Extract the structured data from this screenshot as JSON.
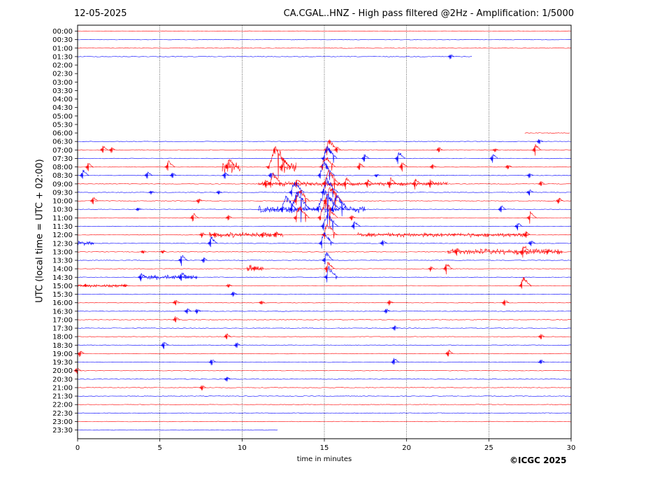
{
  "header": {
    "date": "12-05-2025",
    "station_title": "CA.CGAL..HNZ - High pass filtered @2Hz - Amplification: 1/5000"
  },
  "footer": {
    "copyright": "©ICGC 2025"
  },
  "chart_data": {
    "type": "line",
    "title": "CA.CGAL..HNZ - High pass filtered @2Hz - Amplification: 1/5000",
    "subtitle": "12-05-2025",
    "xlabel": "time in minutes",
    "ylabel": "UTC (local time = UTC + 02:00)",
    "xlim": [
      0,
      30
    ],
    "xticks": [
      0,
      5,
      10,
      15,
      20,
      25,
      30
    ],
    "grid": "vertical dotted at 5-minute ticks",
    "colors": [
      "#ff0000",
      "#0000ff"
    ],
    "rows": [
      "00:00",
      "00:30",
      "01:00",
      "01:30",
      "02:00",
      "02:30",
      "03:00",
      "03:30",
      "04:00",
      "04:30",
      "05:00",
      "05:30",
      "06:00",
      "06:30",
      "07:00",
      "07:30",
      "08:00",
      "08:30",
      "09:00",
      "09:30",
      "10:00",
      "10:30",
      "11:00",
      "11:30",
      "12:00",
      "12:30",
      "13:00",
      "13:30",
      "14:00",
      "14:30",
      "15:00",
      "15:30",
      "16:00",
      "16:30",
      "17:00",
      "17:30",
      "18:00",
      "18:30",
      "19:00",
      "19:30",
      "20:00",
      "20:30",
      "21:00",
      "21:30",
      "22:00",
      "22:30",
      "23:00",
      "23:30"
    ],
    "trace_extent": [
      [
        0,
        30
      ],
      [
        0,
        30
      ],
      [
        0,
        30
      ],
      [
        0,
        24
      ],
      [
        0,
        0
      ],
      [
        0,
        0
      ],
      [
        0,
        0
      ],
      [
        0,
        0
      ],
      [
        0,
        0
      ],
      [
        0,
        0
      ],
      [
        0,
        0
      ],
      [
        0,
        0
      ],
      [
        27.2,
        30
      ],
      [
        0,
        30
      ],
      [
        0,
        30
      ],
      [
        0,
        30
      ],
      [
        0,
        30
      ],
      [
        0,
        30
      ],
      [
        0,
        30
      ],
      [
        0,
        30
      ],
      [
        0,
        30
      ],
      [
        0,
        30
      ],
      [
        0,
        30
      ],
      [
        0,
        30
      ],
      [
        0,
        30
      ],
      [
        0,
        30
      ],
      [
        0,
        30
      ],
      [
        0,
        30
      ],
      [
        0,
        30
      ],
      [
        0,
        30
      ],
      [
        0,
        30
      ],
      [
        0,
        30
      ],
      [
        0,
        30
      ],
      [
        0,
        30
      ],
      [
        0,
        30
      ],
      [
        0,
        30
      ],
      [
        0,
        30
      ],
      [
        0,
        30
      ],
      [
        0,
        30
      ],
      [
        0,
        30
      ],
      [
        0,
        30
      ],
      [
        0,
        30
      ],
      [
        0,
        30
      ],
      [
        0,
        30
      ],
      [
        0,
        30
      ],
      [
        0,
        30
      ],
      [
        0,
        30
      ],
      [
        0,
        12.2
      ]
    ],
    "events": [
      {
        "row": 3,
        "t": 22.7,
        "amp": 0.4
      },
      {
        "row": 13,
        "t": 28.1,
        "amp": 0.4
      },
      {
        "row": 14,
        "t": 1.6,
        "amp": 0.6
      },
      {
        "row": 14,
        "t": 2.1,
        "amp": 0.4
      },
      {
        "row": 14,
        "t": 15.4,
        "amp": 1.5
      },
      {
        "row": 14,
        "t": 15.8,
        "amp": 0.5
      },
      {
        "row": 14,
        "t": 22.0,
        "amp": 0.4
      },
      {
        "row": 14,
        "t": 25.4,
        "amp": 0.3
      },
      {
        "row": 14,
        "t": 27.9,
        "amp": 0.8
      },
      {
        "row": 15,
        "t": 17.5,
        "amp": 0.6
      },
      {
        "row": 15,
        "t": 19.6,
        "amp": 1.0
      },
      {
        "row": 15,
        "t": 25.3,
        "amp": 0.7
      },
      {
        "row": 15,
        "t": 15.3,
        "amp": 1.8
      },
      {
        "row": 16,
        "t": 0.7,
        "amp": 0.6
      },
      {
        "row": 16,
        "t": 5.6,
        "amp": 0.9
      },
      {
        "row": 16,
        "t": 9.3,
        "amp": 1.2
      },
      {
        "row": 16,
        "t": 12.2,
        "amp": 3.0
      },
      {
        "row": 16,
        "t": 12.6,
        "amp": 1.1
      },
      {
        "row": 16,
        "t": 15.2,
        "amp": 1.8
      },
      {
        "row": 16,
        "t": 17.2,
        "amp": 0.6
      },
      {
        "row": 16,
        "t": 19.8,
        "amp": 0.7
      },
      {
        "row": 16,
        "t": 21.6,
        "amp": 0.4
      },
      {
        "row": 16,
        "t": 26.2,
        "amp": 0.4
      },
      {
        "row": 17,
        "t": 0.4,
        "amp": 0.8
      },
      {
        "row": 17,
        "t": 4.3,
        "amp": 0.6
      },
      {
        "row": 17,
        "t": 5.8,
        "amp": 0.4
      },
      {
        "row": 17,
        "t": 9.0,
        "amp": 0.5
      },
      {
        "row": 17,
        "t": 11.8,
        "amp": 0.5
      },
      {
        "row": 17,
        "t": 15.1,
        "amp": 2.0
      },
      {
        "row": 17,
        "t": 18.2,
        "amp": 0.3
      },
      {
        "row": 17,
        "t": 27.5,
        "amp": 0.4
      },
      {
        "row": 18,
        "t": 11.5,
        "amp": 0.6
      },
      {
        "row": 18,
        "t": 12.0,
        "amp": 1.6
      },
      {
        "row": 18,
        "t": 13.4,
        "amp": 0.8
      },
      {
        "row": 18,
        "t": 15.4,
        "amp": 2.0
      },
      {
        "row": 18,
        "t": 16.4,
        "amp": 0.9
      },
      {
        "row": 18,
        "t": 17.7,
        "amp": 0.7
      },
      {
        "row": 18,
        "t": 19.1,
        "amp": 0.9
      },
      {
        "row": 18,
        "t": 20.6,
        "amp": 0.8
      },
      {
        "row": 18,
        "t": 21.5,
        "amp": 0.6
      },
      {
        "row": 18,
        "t": 28.2,
        "amp": 0.4
      },
      {
        "row": 19,
        "t": 4.5,
        "amp": 0.3
      },
      {
        "row": 19,
        "t": 8.6,
        "amp": 0.3
      },
      {
        "row": 19,
        "t": 13.3,
        "amp": 1.7
      },
      {
        "row": 19,
        "t": 15.3,
        "amp": 2.0
      },
      {
        "row": 19,
        "t": 27.5,
        "amp": 0.5
      },
      {
        "row": 20,
        "t": 1.0,
        "amp": 0.6
      },
      {
        "row": 20,
        "t": 7.4,
        "amp": 0.4
      },
      {
        "row": 20,
        "t": 13.6,
        "amp": 1.8
      },
      {
        "row": 20,
        "t": 15.5,
        "amp": 2.2
      },
      {
        "row": 20,
        "t": 29.3,
        "amp": 0.5
      },
      {
        "row": 21,
        "t": 3.7,
        "amp": 0.3
      },
      {
        "row": 21,
        "t": 12.8,
        "amp": 2.0
      },
      {
        "row": 21,
        "t": 13.5,
        "amp": 2.6
      },
      {
        "row": 21,
        "t": 15.2,
        "amp": 3.0
      },
      {
        "row": 21,
        "t": 15.9,
        "amp": 2.2
      },
      {
        "row": 21,
        "t": 25.8,
        "amp": 0.6
      },
      {
        "row": 22,
        "t": 7.1,
        "amp": 0.7
      },
      {
        "row": 22,
        "t": 9.2,
        "amp": 0.4
      },
      {
        "row": 22,
        "t": 13.6,
        "amp": 1.8
      },
      {
        "row": 22,
        "t": 15.2,
        "amp": 2.4
      },
      {
        "row": 22,
        "t": 16.7,
        "amp": 0.4
      },
      {
        "row": 22,
        "t": 27.6,
        "amp": 0.9
      },
      {
        "row": 23,
        "t": 15.3,
        "amp": 2.0
      },
      {
        "row": 23,
        "t": 16.9,
        "amp": 0.8
      },
      {
        "row": 23,
        "t": 26.8,
        "amp": 0.6
      },
      {
        "row": 24,
        "t": 7.6,
        "amp": 0.4
      },
      {
        "row": 24,
        "t": 8.4,
        "amp": 0.4
      },
      {
        "row": 24,
        "t": 11.3,
        "amp": 0.5
      },
      {
        "row": 24,
        "t": 12.1,
        "amp": 0.5
      },
      {
        "row": 24,
        "t": 15.3,
        "amp": 1.7
      },
      {
        "row": 24,
        "t": 27.3,
        "amp": 0.5
      },
      {
        "row": 25,
        "t": 8.2,
        "amp": 0.9
      },
      {
        "row": 25,
        "t": 15.1,
        "amp": 1.6
      },
      {
        "row": 25,
        "t": 18.6,
        "amp": 0.5
      },
      {
        "row": 25,
        "t": 27.6,
        "amp": 0.5
      },
      {
        "row": 26,
        "t": 4.0,
        "amp": 0.3
      },
      {
        "row": 26,
        "t": 5.2,
        "amp": 0.3
      },
      {
        "row": 26,
        "t": 23.1,
        "amp": 0.6
      },
      {
        "row": 26,
        "t": 27.2,
        "amp": 1.0
      },
      {
        "row": 26,
        "t": 28.6,
        "amp": 0.4
      },
      {
        "row": 27,
        "t": 6.4,
        "amp": 0.8
      },
      {
        "row": 27,
        "t": 7.7,
        "amp": 0.4
      },
      {
        "row": 27,
        "t": 15.2,
        "amp": 1.1
      },
      {
        "row": 28,
        "t": 10.8,
        "amp": 0.4
      },
      {
        "row": 28,
        "t": 15.3,
        "amp": 1.0
      },
      {
        "row": 28,
        "t": 21.5,
        "amp": 0.4
      },
      {
        "row": 28,
        "t": 22.5,
        "amp": 0.8
      },
      {
        "row": 29,
        "t": 3.9,
        "amp": 0.6
      },
      {
        "row": 29,
        "t": 6.4,
        "amp": 0.8
      },
      {
        "row": 29,
        "t": 15.4,
        "amp": 1.5
      },
      {
        "row": 30,
        "t": 0.5,
        "amp": 0.3
      },
      {
        "row": 30,
        "t": 2.9,
        "amp": 0.3
      },
      {
        "row": 30,
        "t": 9.2,
        "amp": 0.3
      },
      {
        "row": 30,
        "t": 27.2,
        "amp": 1.3
      },
      {
        "row": 31,
        "t": 9.5,
        "amp": 0.4
      },
      {
        "row": 32,
        "t": 6.0,
        "amp": 0.5
      },
      {
        "row": 32,
        "t": 11.2,
        "amp": 0.3
      },
      {
        "row": 32,
        "t": 19.0,
        "amp": 0.4
      },
      {
        "row": 32,
        "t": 26.0,
        "amp": 0.5
      },
      {
        "row": 33,
        "t": 6.7,
        "amp": 0.5
      },
      {
        "row": 33,
        "t": 7.3,
        "amp": 0.4
      },
      {
        "row": 33,
        "t": 18.8,
        "amp": 0.4
      },
      {
        "row": 34,
        "t": 6.0,
        "amp": 0.5
      },
      {
        "row": 35,
        "t": 19.3,
        "amp": 0.4
      },
      {
        "row": 36,
        "t": 9.1,
        "amp": 0.5
      },
      {
        "row": 36,
        "t": 28.2,
        "amp": 0.4
      },
      {
        "row": 37,
        "t": 5.3,
        "amp": 0.6
      },
      {
        "row": 37,
        "t": 9.7,
        "amp": 0.4
      },
      {
        "row": 38,
        "t": 0.2,
        "amp": 0.5
      },
      {
        "row": 38,
        "t": 22.6,
        "amp": 0.6
      },
      {
        "row": 39,
        "t": 8.2,
        "amp": 0.5
      },
      {
        "row": 39,
        "t": 19.3,
        "amp": 0.6
      },
      {
        "row": 39,
        "t": 28.2,
        "amp": 0.4
      },
      {
        "row": 40,
        "t": 0.0,
        "amp": 0.5
      },
      {
        "row": 41,
        "t": 9.1,
        "amp": 0.4
      },
      {
        "row": 42,
        "t": 7.6,
        "amp": 0.4
      }
    ],
    "bursts": [
      {
        "row": 16,
        "t0": 12.3,
        "t1": 13.3,
        "amp": 0.9
      },
      {
        "row": 16,
        "t0": 8.8,
        "t1": 9.9,
        "amp": 0.9
      },
      {
        "row": 18,
        "t0": 11.0,
        "t1": 22.5,
        "amp": 0.3
      },
      {
        "row": 21,
        "t0": 11.0,
        "t1": 17.5,
        "amp": 0.5
      },
      {
        "row": 24,
        "t0": 8.0,
        "t1": 12.5,
        "amp": 0.35
      },
      {
        "row": 24,
        "t0": 17.0,
        "t1": 27.5,
        "amp": 0.3
      },
      {
        "row": 26,
        "t0": 22.5,
        "t1": 29.5,
        "amp": 0.4
      },
      {
        "row": 28,
        "t0": 10.3,
        "t1": 11.3,
        "amp": 0.5
      },
      {
        "row": 29,
        "t0": 3.8,
        "t1": 7.3,
        "amp": 0.35
      },
      {
        "row": 30,
        "t0": 0.0,
        "t1": 3.0,
        "amp": 0.2
      },
      {
        "row": 25,
        "t0": 0.0,
        "t1": 1.0,
        "amp": 0.3
      }
    ]
  }
}
